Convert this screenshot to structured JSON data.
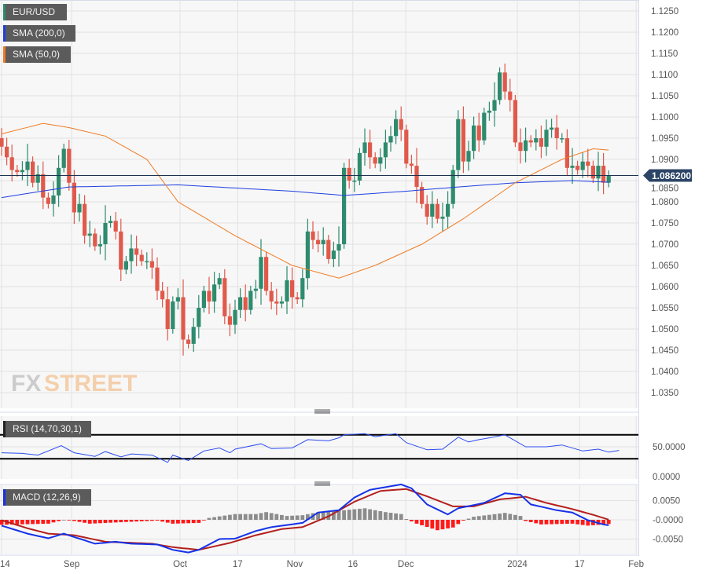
{
  "chart_data": [
    {
      "type": "candlestick",
      "title": "EUR/USD",
      "legend": [
        {
          "label": "EUR/USD",
          "color": "#2e8b6e"
        },
        {
          "label": "SMA (200,0)",
          "color": "#1f3fe0"
        },
        {
          "label": "SMA (50,0)",
          "color": "#f07a22"
        }
      ],
      "last_price": "1.086200",
      "last_price_value": 1.0862,
      "ylim": [
        1.0325,
        1.1275
      ],
      "y_ticks": [
        "1.1250",
        "1.1200",
        "1.1150",
        "1.1100",
        "1.1050",
        "1.1000",
        "1.0950",
        "1.0900",
        "1.0850",
        "1.0800",
        "1.0750",
        "1.0700",
        "1.0650",
        "1.0600",
        "1.0550",
        "1.0500",
        "1.0450",
        "1.0400",
        "1.0350"
      ],
      "x_ticks": [
        {
          "label": "14",
          "bar": 0
        },
        {
          "label": "Sep",
          "bar": 13.5
        },
        {
          "label": "Oct",
          "bar": 34.4
        },
        {
          "label": "17",
          "bar": 45.5
        },
        {
          "label": "Nov",
          "bar": 56.5
        },
        {
          "label": "16",
          "bar": 67.7
        },
        {
          "label": "Dec",
          "bar": 77.9
        },
        {
          "label": "2024",
          "bar": 99.4
        },
        {
          "label": "17",
          "bar": 111.4
        },
        {
          "label": "Feb",
          "bar": 122.3
        }
      ],
      "first_open": 1.095,
      "closes": [
        1.093,
        1.0905,
        1.0875,
        1.087,
        1.0875,
        1.0895,
        1.0845,
        1.0865,
        1.081,
        1.0795,
        1.0815,
        1.088,
        1.0925,
        1.0845,
        1.0775,
        1.0795,
        1.072,
        1.0725,
        1.0695,
        1.07,
        1.075,
        1.0755,
        1.073,
        1.064,
        1.066,
        1.069,
        1.0675,
        1.066,
        1.066,
        1.0645,
        1.059,
        1.057,
        1.05,
        1.0565,
        1.0575,
        1.0475,
        1.0465,
        1.0505,
        1.055,
        1.059,
        1.0565,
        1.0605,
        1.062,
        1.053,
        1.051,
        1.0545,
        1.0575,
        1.0545,
        1.059,
        1.0595,
        1.067,
        1.059,
        1.0565,
        1.056,
        1.0565,
        1.0615,
        1.0575,
        1.057,
        1.062,
        1.073,
        1.071,
        1.07,
        1.071,
        1.0665,
        1.0685,
        1.07,
        1.088,
        1.085,
        1.085,
        1.0915,
        1.094,
        1.0905,
        1.089,
        1.0905,
        1.094,
        1.0955,
        1.0995,
        1.097,
        1.089,
        1.0885,
        1.0835,
        1.0795,
        1.0765,
        1.0795,
        1.076,
        1.0765,
        1.0795,
        1.0875,
        1.0995,
        1.0895,
        1.092,
        1.098,
        1.0945,
        1.101,
        1.1015,
        1.104,
        1.1105,
        1.106,
        1.104,
        1.094,
        1.092,
        1.0945,
        1.094,
        1.095,
        1.093,
        1.097,
        1.0975,
        1.095,
        1.095,
        1.088,
        1.0885,
        1.0875,
        1.0895,
        1.0885,
        1.0855,
        1.0885,
        1.0845,
        1.0862
      ],
      "sma200": [
        [
          0,
          1.081
        ],
        [
          13,
          1.0835
        ],
        [
          34,
          1.084
        ],
        [
          56,
          1.0825
        ],
        [
          66,
          1.0815
        ],
        [
          78,
          1.0825
        ],
        [
          88,
          1.0835
        ],
        [
          99,
          1.0845
        ],
        [
          110,
          1.085
        ],
        [
          119,
          1.0845
        ]
      ],
      "sma50": [
        [
          0,
          1.096
        ],
        [
          8,
          1.0985
        ],
        [
          13,
          1.0975
        ],
        [
          20,
          1.0955
        ],
        [
          28,
          1.09
        ],
        [
          34,
          1.08
        ],
        [
          45,
          1.072
        ],
        [
          56,
          1.065
        ],
        [
          65,
          1.062
        ],
        [
          72,
          1.065
        ],
        [
          81,
          1.07
        ],
        [
          89,
          1.076
        ],
        [
          99,
          1.0845
        ],
        [
          108,
          1.09
        ],
        [
          114,
          1.0925
        ],
        [
          119,
          1.092
        ]
      ]
    },
    {
      "type": "line",
      "title": "RSI (14,70,30,1)",
      "ylim": [
        0,
        100
      ],
      "levels": [
        70,
        30
      ],
      "y_ticks": [
        "50.0000",
        "0.0000"
      ],
      "points": [
        [
          0,
          40
        ],
        [
          4,
          39
        ],
        [
          7,
          36
        ],
        [
          11.5,
          52
        ],
        [
          14,
          40
        ],
        [
          18,
          34
        ],
        [
          20,
          42
        ],
        [
          23,
          33
        ],
        [
          25,
          38
        ],
        [
          29,
          36
        ],
        [
          32,
          24
        ],
        [
          33,
          36
        ],
        [
          36,
          27
        ],
        [
          39,
          43
        ],
        [
          42,
          48
        ],
        [
          44,
          40
        ],
        [
          45,
          46
        ],
        [
          50,
          55
        ],
        [
          52,
          47
        ],
        [
          56,
          48
        ],
        [
          59,
          62
        ],
        [
          63,
          60
        ],
        [
          65,
          65
        ],
        [
          66,
          70
        ],
        [
          70,
          72
        ],
        [
          72,
          67
        ],
        [
          76,
          72
        ],
        [
          78,
          57
        ],
        [
          82,
          45
        ],
        [
          85,
          46
        ],
        [
          88,
          66
        ],
        [
          90,
          58
        ],
        [
          92,
          62
        ],
        [
          94,
          65
        ],
        [
          97,
          70
        ],
        [
          101,
          50
        ],
        [
          105,
          50
        ],
        [
          108,
          53
        ],
        [
          112,
          43
        ],
        [
          115,
          46
        ],
        [
          117,
          41
        ],
        [
          119,
          44
        ]
      ]
    },
    {
      "type": "line",
      "title": "MACD (12,26,9)",
      "ylim": [
        -0.0085,
        0.0085
      ],
      "y_ticks": [
        "0.0050",
        "-0.0000",
        "-0.0050"
      ],
      "macd": [
        [
          0,
          -0.0015
        ],
        [
          5,
          -0.0036
        ],
        [
          9,
          -0.0048
        ],
        [
          12,
          -0.0036
        ],
        [
          18,
          -0.0062
        ],
        [
          22,
          -0.0057
        ],
        [
          25,
          -0.0062
        ],
        [
          30,
          -0.0064
        ],
        [
          33,
          -0.0078
        ],
        [
          36,
          -0.0085
        ],
        [
          38,
          -0.0078
        ],
        [
          42,
          -0.005
        ],
        [
          45,
          -0.0049
        ],
        [
          49,
          -0.0029
        ],
        [
          52,
          -0.0019
        ],
        [
          58,
          -0.0008
        ],
        [
          61,
          0.0019
        ],
        [
          65,
          0.0025
        ],
        [
          68,
          0.0058
        ],
        [
          71,
          0.0078
        ],
        [
          77,
          0.0092
        ],
        [
          79,
          0.0082
        ],
        [
          82,
          0.004
        ],
        [
          86,
          0.0014
        ],
        [
          88,
          0.003
        ],
        [
          93,
          0.0044
        ],
        [
          97,
          0.0069
        ],
        [
          100,
          0.0065
        ],
        [
          102,
          0.004
        ],
        [
          107,
          0.0025
        ],
        [
          110,
          0.0019
        ],
        [
          113,
          -0.0001
        ],
        [
          116,
          -0.0012
        ],
        [
          119,
          -0.0019
        ]
      ],
      "signal": [
        [
          0,
          -0.0001
        ],
        [
          5,
          -0.0022
        ],
        [
          9,
          -0.0036
        ],
        [
          14,
          -0.004
        ],
        [
          20,
          -0.0057
        ],
        [
          29,
          -0.0062
        ],
        [
          33,
          -0.0071
        ],
        [
          38,
          -0.0078
        ],
        [
          44,
          -0.006
        ],
        [
          49,
          -0.004
        ],
        [
          54,
          -0.0024
        ],
        [
          58,
          -0.0019
        ],
        [
          63,
          0.0009
        ],
        [
          68,
          0.0047
        ],
        [
          73,
          0.0075
        ],
        [
          78,
          0.008
        ],
        [
          82,
          0.0061
        ],
        [
          87,
          0.0035
        ],
        [
          91,
          0.0035
        ],
        [
          96,
          0.0053
        ],
        [
          101,
          0.006
        ],
        [
          105,
          0.0044
        ],
        [
          110,
          0.0028
        ],
        [
          114,
          0.0013
        ],
        [
          119,
          -0.0008
        ]
      ],
      "histogram": [
        [
          0,
          -0.0013
        ],
        [
          9,
          -0.001
        ],
        [
          12,
          0.0
        ],
        [
          14,
          -0.0003
        ],
        [
          17,
          -0.001
        ],
        [
          25,
          -0.0005
        ],
        [
          30,
          -0.0002
        ],
        [
          33,
          -0.001
        ],
        [
          38,
          -0.0008
        ],
        [
          40,
          0.0005
        ],
        [
          45,
          0.0015
        ],
        [
          49,
          0.0015
        ],
        [
          51,
          0.002
        ],
        [
          55,
          0.001
        ],
        [
          58,
          0.0012
        ],
        [
          61,
          0.002
        ],
        [
          66,
          0.0025
        ],
        [
          70,
          0.003
        ],
        [
          74,
          0.002
        ],
        [
          77,
          0.0015
        ],
        [
          78,
          0.0002
        ],
        [
          80,
          -0.001
        ],
        [
          84,
          -0.0027
        ],
        [
          87,
          -0.002
        ],
        [
          89,
          -0.0002
        ],
        [
          91,
          0.0008
        ],
        [
          97,
          0.0018
        ],
        [
          100,
          0.001
        ],
        [
          101,
          -0.0003
        ],
        [
          104,
          -0.0012
        ],
        [
          110,
          -0.001
        ],
        [
          113,
          -0.0015
        ],
        [
          116,
          -0.0012
        ],
        [
          119,
          -0.0009
        ]
      ]
    }
  ],
  "colors": {
    "up": "#2e8b6e",
    "down": "#e0594b",
    "sma200": "#1f3fe0",
    "sma50": "#f07a22",
    "rsi": "#2b4cf0",
    "macd": "#1532e8",
    "signal": "#b3201c",
    "hist_pos": "#8c8c8c",
    "hist_neg": "#ff1a1a",
    "price_label": "#2c4566"
  },
  "watermark": {
    "part1": "FX",
    "part2": "STREET"
  }
}
